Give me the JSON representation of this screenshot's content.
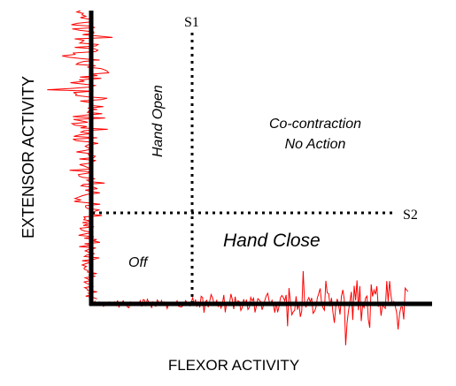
{
  "diagram": {
    "x_axis_label": "FLEXOR ACTIVITY",
    "y_axis_label": "EXTENSOR ACTIVITY",
    "threshold_s1_label": "S1",
    "threshold_s2_label": "S2",
    "region_hand_open": "Hand Open",
    "region_cocontraction_line1": "Co-contraction",
    "region_cocontraction_line2": "No Action",
    "region_off": "Off",
    "region_hand_close": "Hand Close",
    "colors": {
      "axis": "#000000",
      "threshold_lines": "#000000",
      "emg_signal": "#ff0000",
      "text": "#000000"
    }
  }
}
